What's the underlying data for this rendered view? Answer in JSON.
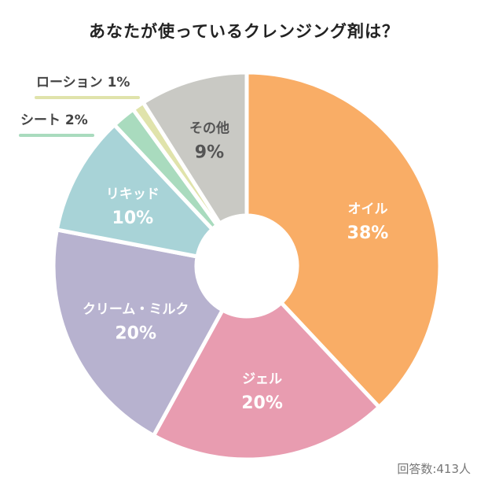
{
  "chart_data": {
    "type": "pie",
    "title": "あなたが使っているクレンジング剤は？",
    "note": "回答数:413人",
    "slices": [
      {
        "label": "オイル",
        "value": 38,
        "value_label": "38%",
        "color": "#f9ad66"
      },
      {
        "label": "ジェル",
        "value": 20,
        "value_label": "20%",
        "color": "#e89cb0"
      },
      {
        "label": "クリーム・ミルク",
        "value": 20,
        "value_label": "20%",
        "color": "#b7b2cf"
      },
      {
        "label": "リキッド",
        "value": 10,
        "value_label": "10%",
        "color": "#a8d3d7"
      },
      {
        "label": "シート",
        "value": 2,
        "value_label": "2%",
        "color": "#a9dbbe"
      },
      {
        "label": "ローション",
        "value": 1,
        "value_label": "1%",
        "color": "#e0e3ab"
      },
      {
        "label": "その他",
        "value": 9,
        "value_label": "9%",
        "color": "#c9c9c4"
      }
    ]
  }
}
